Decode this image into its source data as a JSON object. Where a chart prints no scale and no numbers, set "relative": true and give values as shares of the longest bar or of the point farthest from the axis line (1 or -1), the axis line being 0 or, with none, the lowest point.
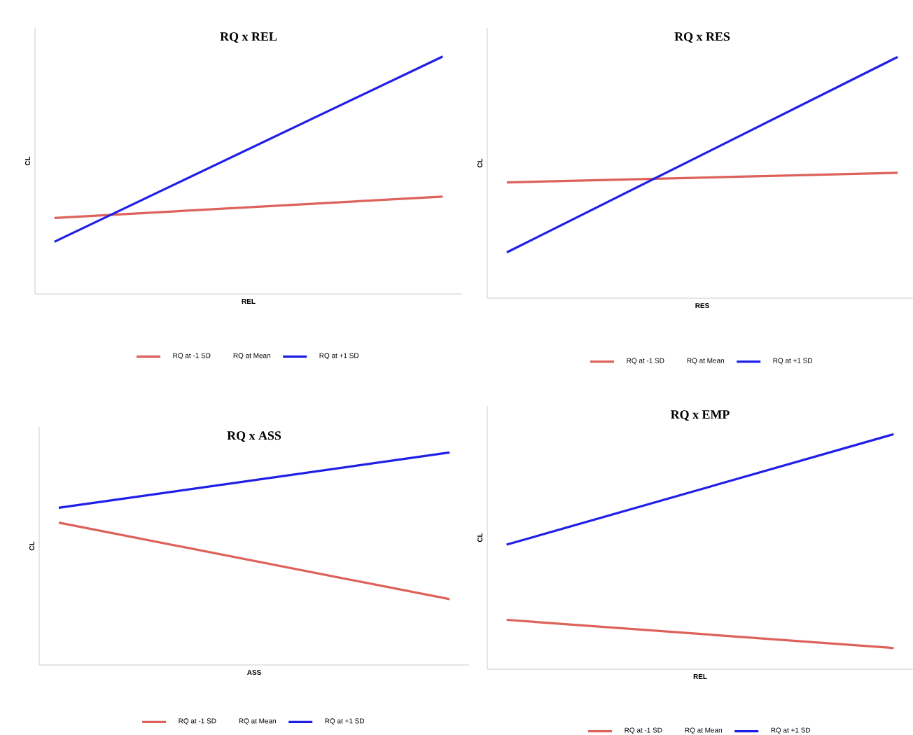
{
  "chart_data": [
    {
      "type": "line",
      "title": "RQ x REL",
      "xlabel": "REL",
      "ylabel": "CL",
      "relative": true,
      "legend": "bottom",
      "categories": [
        null,
        null
      ],
      "series": [
        {
          "name": "RQ at -1 SD",
          "color": "#dc625a",
          "values": [
            0.32,
            0.41
          ]
        },
        {
          "name": "RQ at Mean",
          "values": [
            null,
            null
          ]
        },
        {
          "name": "RQ at +1 SD",
          "color": "#1f1fe8",
          "values": [
            0.22,
            1.0
          ]
        }
      ]
    },
    {
      "type": "line",
      "title": "RQ x RES",
      "xlabel": "RES",
      "ylabel": "CL",
      "relative": true,
      "legend": "bottom",
      "categories": [
        null,
        null
      ],
      "series": [
        {
          "name": "RQ at -1 SD",
          "color": "#dc625a",
          "values": [
            0.48,
            0.52
          ]
        },
        {
          "name": "RQ at Mean",
          "values": [
            null,
            null
          ]
        },
        {
          "name": "RQ at +1 SD",
          "color": "#1f1fe8",
          "values": [
            0.19,
            1.0
          ]
        }
      ]
    },
    {
      "type": "line",
      "title": "RQ x ASS",
      "xlabel": "ASS",
      "ylabel": "CL",
      "relative": true,
      "legend": "bottom",
      "categories": [
        null,
        null
      ],
      "series": [
        {
          "name": "RQ at -1 SD",
          "color": "#dc625a",
          "values": [
            0.67,
            0.31
          ]
        },
        {
          "name": "RQ at Mean",
          "values": [
            null,
            null
          ]
        },
        {
          "name": "RQ at +1 SD",
          "color": "#1f1fe8",
          "values": [
            0.74,
            1.0
          ]
        }
      ]
    },
    {
      "type": "line",
      "title": "RQ x EMP",
      "xlabel": "REL",
      "ylabel": "CL",
      "relative": true,
      "legend": "bottom",
      "categories": [
        null,
        null
      ],
      "series": [
        {
          "name": "RQ at -1 SD",
          "color": "#dc625a",
          "values": [
            0.21,
            0.09
          ]
        },
        {
          "name": "RQ at Mean",
          "values": [
            null,
            null
          ]
        },
        {
          "name": "RQ at +1 SD",
          "color": "#1f1fe8",
          "values": [
            0.53,
            1.0
          ]
        }
      ]
    }
  ]
}
